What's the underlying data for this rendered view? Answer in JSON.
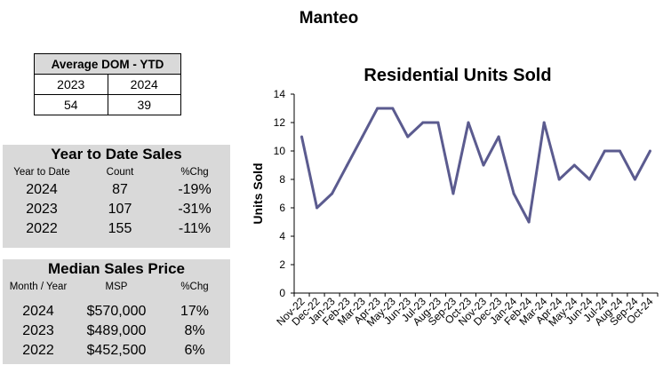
{
  "page": {
    "title": "Manteo"
  },
  "dom_table": {
    "header": "Average DOM - YTD",
    "years": [
      "2023",
      "2024"
    ],
    "values": [
      "54",
      "39"
    ]
  },
  "ytd_sales": {
    "title": "Year to Date Sales",
    "columns": [
      "Year to Date",
      "Count",
      "%Chg"
    ],
    "rows": [
      [
        "2024",
        "87",
        "-19%"
      ],
      [
        "2023",
        "107",
        "-31%"
      ],
      [
        "2022",
        "155",
        "-11%"
      ]
    ]
  },
  "median_price": {
    "title": "Median Sales Price",
    "columns": [
      "Month / Year",
      "MSP",
      "%Chg"
    ],
    "rows": [
      [
        "2024",
        "$570,000",
        "17%"
      ],
      [
        "2023",
        "$489,000",
        "8%"
      ],
      [
        "2022",
        "$452,500",
        "6%"
      ]
    ]
  },
  "chart_data": {
    "type": "line",
    "title": "Residential Units Sold",
    "xlabel": "",
    "ylabel": "Units Sold",
    "ylim": [
      0,
      14
    ],
    "yticks": [
      0,
      2,
      4,
      6,
      8,
      10,
      12,
      14
    ],
    "grid": false,
    "line_color": "#5b5b8f",
    "categories": [
      "Nov-22",
      "Dec-22",
      "Jan-23",
      "Feb-23",
      "Mar-23",
      "Apr-23",
      "May-23",
      "Jun-23",
      "Jul-23",
      "Aug-23",
      "Sep-23",
      "Oct-23",
      "Nov-23",
      "Dec-23",
      "Jan-24",
      "Feb-24",
      "Mar-24",
      "Apr-24",
      "May-24",
      "Jun-24",
      "Jul-24",
      "Aug-24",
      "Sep-24",
      "Oct-24"
    ],
    "values": [
      11,
      6,
      7,
      9,
      11,
      13,
      13,
      11,
      12,
      12,
      7,
      12,
      9,
      11,
      7,
      5,
      12,
      8,
      9,
      8,
      10,
      10,
      8,
      10
    ]
  }
}
